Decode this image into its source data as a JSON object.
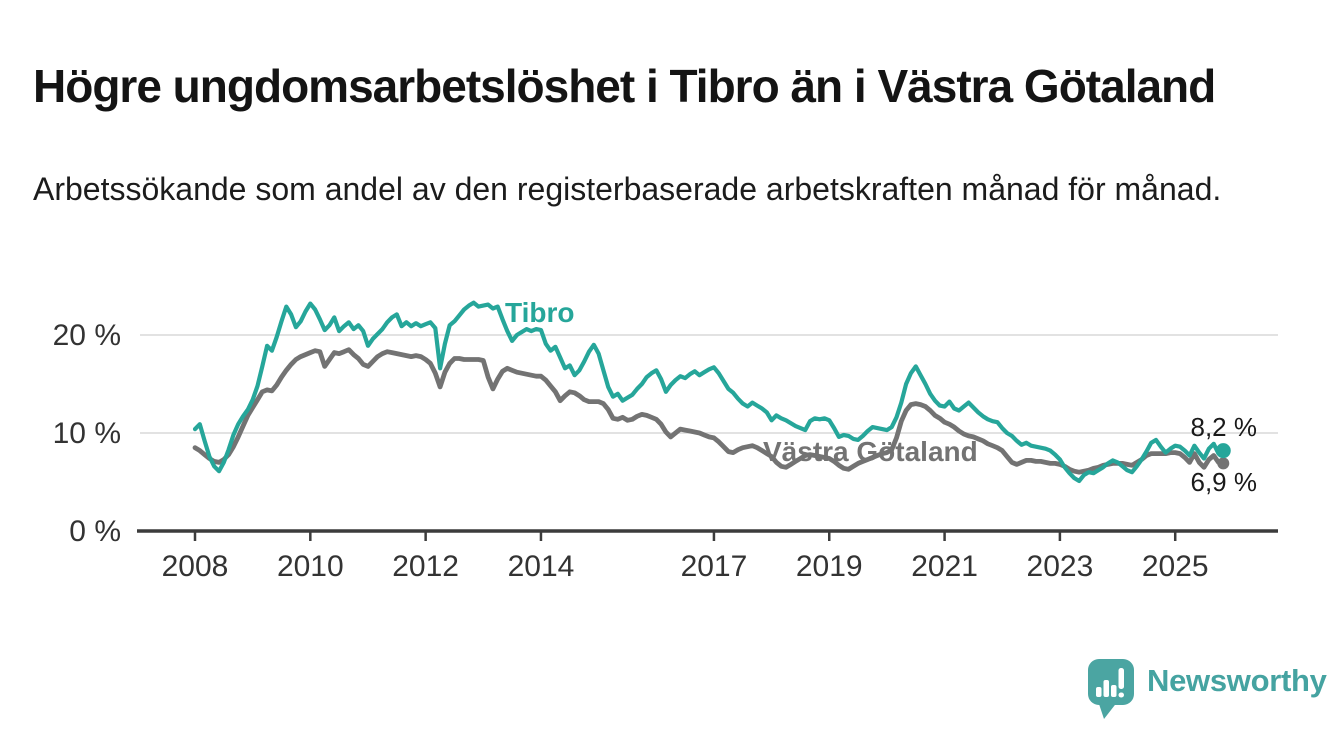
{
  "header": {
    "title": "Högre ungdomsarbetslöshet i Tibro än i Västra Götaland",
    "subtitle": "Arbetssökande som andel av den registerbaserade arbetskraften månad för månad."
  },
  "brand": {
    "name": "Newsworthy",
    "icon": "speech-bubble-bar-chart",
    "color": "#4ba5a2"
  },
  "colors": {
    "accent_teal": "#26a69a",
    "series_gray": "#737373",
    "gridline": "#d9d9d9",
    "axis": "#3c3c3c",
    "axis_label": "#333333",
    "value_label": "#1a1a1a"
  },
  "chart_data": {
    "type": "line",
    "title": "Högre ungdomsarbetslöshet i Tibro än i Västra Götaland",
    "subtitle": "Arbetssökande som andel av den registerbaserade arbetskraften månad för månad.",
    "unit": "%",
    "grid": "horizontal",
    "legend_position": "inline-labels",
    "x_start_year": 2008,
    "x_step_months": 1,
    "x_end": "2025-11",
    "x_axis": {
      "tick_years": [
        2008,
        2010,
        2012,
        2014,
        2017,
        2019,
        2021,
        2023,
        2025
      ]
    },
    "y_axis": {
      "tick_values": [
        0,
        10,
        20
      ],
      "tick_labels": [
        "0 %",
        "10 %",
        "20 %"
      ],
      "ylim": [
        0,
        25
      ]
    },
    "series": [
      {
        "name": "Tibro",
        "color": "#26a69a",
        "end_label": "8,2 %",
        "end_value": 8.2,
        "end_dot": true,
        "values": [
          10.4,
          10.9,
          9.2,
          7.6,
          6.6,
          6.1,
          7.0,
          8.3,
          9.8,
          10.9,
          11.7,
          12.4,
          13.4,
          14.8,
          16.8,
          18.9,
          18.4,
          19.8,
          21.4,
          22.9,
          22.1,
          20.8,
          21.4,
          22.4,
          23.2,
          22.6,
          21.6,
          20.5,
          21.0,
          21.8,
          20.4,
          20.9,
          21.3,
          20.6,
          21.0,
          20.4,
          18.9,
          19.6,
          20.1,
          20.6,
          21.3,
          21.8,
          22.1,
          20.9,
          21.3,
          20.9,
          21.2,
          20.9,
          21.1,
          21.3,
          20.7,
          16.6,
          19.1,
          21.0,
          21.4,
          22.0,
          22.6,
          23.0,
          23.3,
          22.9,
          23.0,
          23.1,
          22.7,
          22.9,
          21.6,
          20.4,
          19.4,
          20.0,
          20.3,
          20.6,
          20.4,
          20.6,
          20.5,
          19.1,
          18.4,
          18.8,
          17.7,
          16.6,
          16.9,
          15.9,
          16.4,
          17.3,
          18.3,
          19.0,
          18.1,
          16.4,
          14.7,
          13.7,
          14.0,
          13.3,
          13.6,
          13.9,
          14.5,
          15.0,
          15.7,
          16.1,
          16.4,
          15.5,
          14.2,
          14.9,
          15.4,
          15.8,
          15.6,
          16.0,
          16.3,
          15.9,
          16.2,
          16.5,
          16.7,
          16.1,
          15.3,
          14.5,
          14.1,
          13.5,
          13.0,
          12.7,
          13.1,
          12.8,
          12.5,
          12.1,
          11.3,
          11.8,
          11.5,
          11.3,
          11.0,
          10.7,
          10.5,
          10.3,
          11.2,
          11.5,
          11.4,
          11.5,
          11.3,
          10.5,
          9.6,
          9.8,
          9.7,
          9.4,
          9.3,
          9.7,
          10.2,
          10.6,
          10.5,
          10.4,
          10.3,
          10.6,
          11.6,
          13.1,
          15.0,
          16.1,
          16.8,
          15.9,
          15.0,
          14.0,
          13.3,
          12.8,
          12.7,
          13.2,
          12.5,
          12.3,
          12.7,
          13.1,
          12.6,
          12.1,
          11.7,
          11.4,
          11.2,
          11.1,
          10.5,
          10.0,
          9.7,
          9.2,
          8.8,
          9.0,
          8.7,
          8.6,
          8.5,
          8.4,
          8.2,
          7.8,
          7.3,
          6.5,
          5.9,
          5.4,
          5.1,
          5.7,
          6.0,
          5.9,
          6.2,
          6.5,
          6.9,
          7.2,
          7.0,
          6.6,
          6.2,
          6.0,
          6.6,
          7.3,
          8.1,
          9.0,
          9.3,
          8.6,
          8.0,
          8.4,
          8.7,
          8.6,
          8.2,
          7.7,
          8.7,
          8.0,
          7.4,
          8.4,
          8.9,
          7.9,
          8.2
        ]
      },
      {
        "name": "Västra Götaland",
        "color": "#737373",
        "end_label": "6,9 %",
        "end_value": 6.9,
        "end_dot": true,
        "values": [
          8.5,
          8.2,
          7.8,
          7.4,
          7.1,
          7.0,
          7.3,
          7.8,
          8.6,
          9.6,
          10.7,
          11.8,
          12.6,
          13.4,
          14.2,
          14.4,
          14.3,
          14.9,
          15.7,
          16.4,
          17.0,
          17.5,
          17.8,
          18.0,
          18.2,
          18.4,
          18.3,
          16.8,
          17.5,
          18.2,
          18.1,
          18.3,
          18.5,
          18.0,
          17.6,
          17.0,
          16.8,
          17.3,
          17.8,
          18.1,
          18.3,
          18.2,
          18.1,
          18.0,
          17.9,
          17.8,
          17.9,
          17.8,
          17.5,
          17.1,
          16.1,
          14.7,
          16.2,
          17.1,
          17.6,
          17.6,
          17.5,
          17.5,
          17.5,
          17.5,
          17.4,
          15.7,
          14.5,
          15.5,
          16.3,
          16.6,
          16.4,
          16.2,
          16.1,
          16.0,
          15.9,
          15.8,
          15.8,
          15.4,
          14.8,
          14.2,
          13.3,
          13.8,
          14.2,
          14.1,
          13.8,
          13.4,
          13.2,
          13.2,
          13.2,
          13.0,
          12.4,
          11.5,
          11.4,
          11.6,
          11.3,
          11.4,
          11.7,
          11.9,
          11.8,
          11.6,
          11.4,
          10.9,
          10.1,
          9.6,
          10.0,
          10.4,
          10.3,
          10.2,
          10.1,
          10.0,
          9.8,
          9.6,
          9.5,
          9.1,
          8.6,
          8.1,
          8.0,
          8.3,
          8.5,
          8.6,
          8.7,
          8.5,
          8.2,
          7.9,
          7.6,
          7.0,
          6.6,
          6.5,
          6.8,
          7.1,
          7.4,
          7.7,
          7.8,
          7.7,
          7.6,
          7.5,
          7.4,
          7.1,
          6.7,
          6.4,
          6.3,
          6.6,
          6.9,
          7.1,
          7.3,
          7.5,
          7.7,
          7.9,
          8.0,
          8.3,
          9.5,
          11.2,
          12.3,
          12.9,
          13.0,
          12.9,
          12.7,
          12.3,
          11.8,
          11.5,
          11.1,
          10.9,
          10.6,
          10.2,
          9.9,
          9.7,
          9.6,
          9.4,
          9.2,
          8.9,
          8.7,
          8.5,
          8.2,
          7.6,
          7.0,
          6.8,
          7.0,
          7.2,
          7.2,
          7.1,
          7.1,
          7.0,
          6.9,
          6.9,
          6.8,
          6.6,
          6.3,
          6.1,
          6.0,
          6.1,
          6.2,
          6.4,
          6.5,
          6.7,
          6.8,
          6.9,
          6.9,
          6.9,
          6.8,
          6.7,
          7.0,
          7.3,
          7.7,
          7.9,
          7.9,
          7.9,
          7.9,
          8.0,
          8.0,
          7.9,
          7.5,
          7.0,
          7.9,
          7.0,
          6.5,
          7.3,
          7.7,
          7.0,
          6.9
        ]
      }
    ]
  }
}
